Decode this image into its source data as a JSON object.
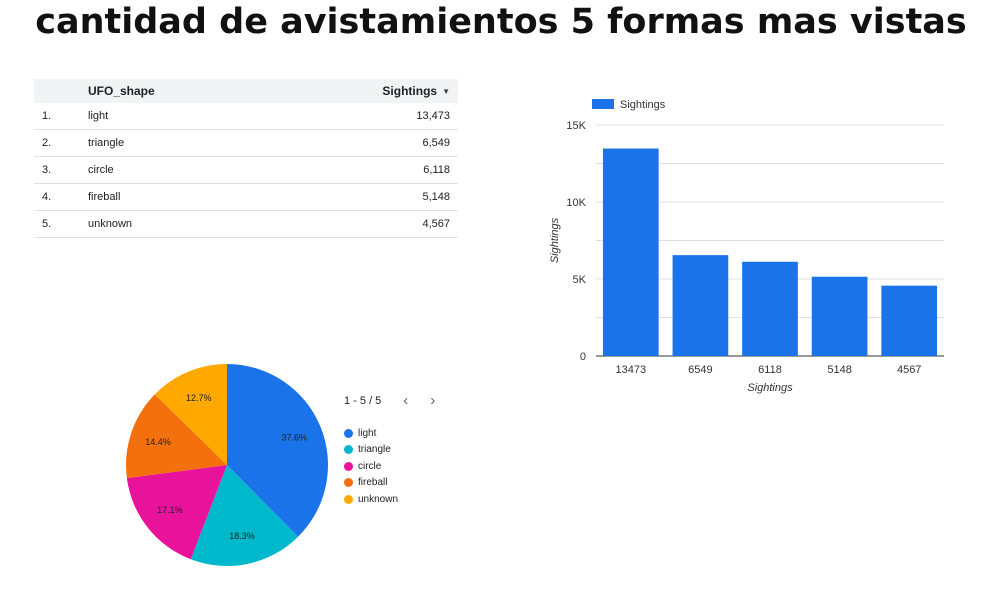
{
  "title": "cantidad de avistamientos 5 formas mas vistas",
  "table": {
    "headers": [
      "UFO_shape",
      "Sightings"
    ],
    "rows": [
      {
        "idx": "1.",
        "shape": "light",
        "sightings": "13,473"
      },
      {
        "idx": "2.",
        "shape": "triangle",
        "sightings": "6,549"
      },
      {
        "idx": "3.",
        "shape": "circle",
        "sightings": "6,118"
      },
      {
        "idx": "4.",
        "shape": "fireball",
        "sightings": "5,148"
      },
      {
        "idx": "5.",
        "shape": "unknown",
        "sightings": "4,567"
      }
    ]
  },
  "pager": {
    "label": "1 - 5 / 5",
    "prev": "‹",
    "next": "›"
  },
  "chart_data": [
    {
      "type": "bar",
      "categories": [
        "13473",
        "6549",
        "6118",
        "5148",
        "4567"
      ],
      "series": [
        {
          "name": "Sightings",
          "values": [
            13473,
            6549,
            6118,
            5148,
            4567
          ]
        }
      ],
      "xlabel": "Sightings",
      "ylabel": "Sightings",
      "ylim": [
        0,
        15000
      ],
      "yticks": [
        {
          "value": 0,
          "label": "0"
        },
        {
          "value": 5000,
          "label": "5K"
        },
        {
          "value": 10000,
          "label": "10K"
        },
        {
          "value": 15000,
          "label": "15K"
        }
      ],
      "grid": true,
      "legend": "top-left",
      "color": "#1a73e8"
    },
    {
      "type": "pie",
      "labels": [
        "light",
        "triangle",
        "circle",
        "fireball",
        "unknown"
      ],
      "values": [
        37.6,
        18.3,
        17.1,
        14.4,
        12.7
      ],
      "value_labels": [
        "37.6%",
        "18.3%",
        "17.1%",
        "14.4%",
        "12.7%"
      ],
      "colors": [
        "#1a73e8",
        "#00b8cc",
        "#e8129b",
        "#f4700d",
        "#ffa800"
      ],
      "legend": "right"
    }
  ]
}
